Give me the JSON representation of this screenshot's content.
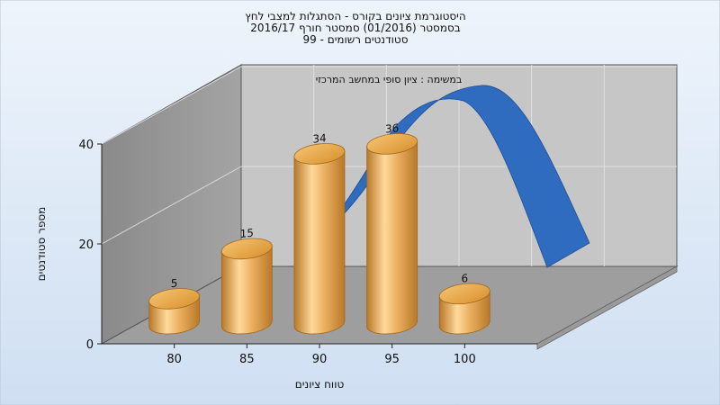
{
  "chart_data": {
    "type": "bar",
    "title_lines": [
      "היסטוגרמת ציונים בקורס - הסתגלות למצבי לחץ",
      "בסמסטר  (01/2016)  סמסטר חורף 2016/17",
      "סטודנטים רשומים - 99"
    ],
    "subtitle": "במשימה : ציון סופי במחשב המרכזי",
    "xlabel": "טווח ציונים",
    "ylabel": "מספר סטודנטים",
    "x_ticks": [
      "80",
      "85",
      "90",
      "95",
      "100"
    ],
    "y_ticks": [
      "0",
      "20",
      "40"
    ],
    "ylim": [
      0,
      40
    ],
    "bars": [
      {
        "x": 77.5,
        "value": 5,
        "label": "5"
      },
      {
        "x": 82.5,
        "value": 15,
        "label": "15"
      },
      {
        "x": 87.5,
        "value": 34,
        "label": "34"
      },
      {
        "x": 92.5,
        "value": 36,
        "label": "36"
      },
      {
        "x": 97.5,
        "value": 6,
        "label": "6"
      }
    ],
    "curve": {
      "type": "normal-distribution-ribbon",
      "color": "#2f6cc0"
    },
    "bar_color": "#e5a24a",
    "grid": true,
    "style": "3d"
  }
}
